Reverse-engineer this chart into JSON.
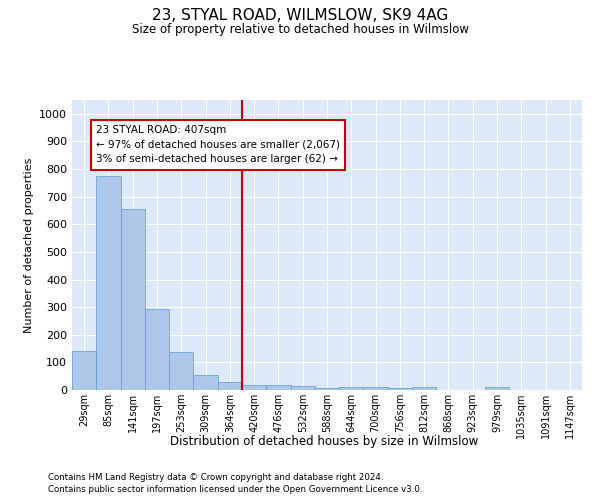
{
  "title": "23, STYAL ROAD, WILMSLOW, SK9 4AG",
  "subtitle": "Size of property relative to detached houses in Wilmslow",
  "xlabel": "Distribution of detached houses by size in Wilmslow",
  "ylabel": "Number of detached properties",
  "bar_color": "#aec6e8",
  "bar_edge_color": "#5b9bd5",
  "vline_color": "#cc0000",
  "annotation_text": "23 STYAL ROAD: 407sqm\n← 97% of detached houses are smaller (2,067)\n3% of semi-detached houses are larger (62) →",
  "annotation_box_color": "#ffffff",
  "annotation_box_edge": "#cc0000",
  "categories": [
    "29sqm",
    "85sqm",
    "141sqm",
    "197sqm",
    "253sqm",
    "309sqm",
    "364sqm",
    "420sqm",
    "476sqm",
    "532sqm",
    "588sqm",
    "644sqm",
    "700sqm",
    "756sqm",
    "812sqm",
    "868sqm",
    "923sqm",
    "979sqm",
    "1035sqm",
    "1091sqm",
    "1147sqm"
  ],
  "values": [
    140,
    775,
    657,
    295,
    137,
    55,
    30,
    18,
    18,
    13,
    8,
    10,
    10,
    8,
    10,
    0,
    0,
    10,
    0,
    0,
    0
  ],
  "ylim": [
    0,
    1050
  ],
  "yticks": [
    0,
    100,
    200,
    300,
    400,
    500,
    600,
    700,
    800,
    900,
    1000
  ],
  "background_color": "#dde8f8",
  "footnote1": "Contains HM Land Registry data © Crown copyright and database right 2024.",
  "footnote2": "Contains public sector information licensed under the Open Government Licence v3.0.",
  "figsize": [
    6.0,
    5.0
  ],
  "dpi": 100
}
